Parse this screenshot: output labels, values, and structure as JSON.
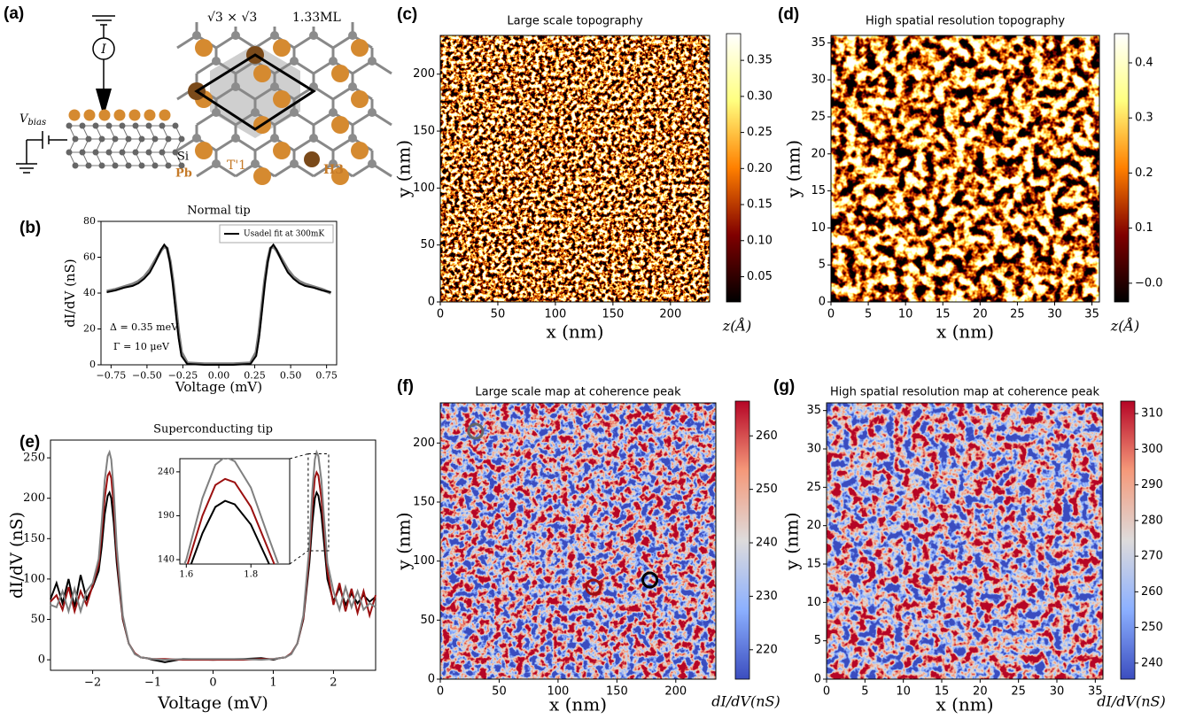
{
  "diagram": {
    "panel_label": "(a)",
    "current": "I",
    "bias_label": "V",
    "bias_subscript": "bias",
    "substrate": "Si",
    "adatom": "Pb",
    "superstructure": "√3 × √3",
    "coverage": "1.33ML",
    "site_1": "T'1",
    "site_2": "H3"
  },
  "chart_data": [
    {
      "type": "line",
      "panel_label": "(b)",
      "title": "Normal tip",
      "xlabel": "Voltage (mV)",
      "ylabel": "dI/dV (nS)",
      "x": [
        -0.78,
        -0.72,
        -0.66,
        -0.6,
        -0.56,
        -0.52,
        -0.48,
        -0.44,
        -0.4,
        -0.38,
        -0.36,
        -0.34,
        -0.32,
        -0.3,
        -0.28,
        -0.26,
        -0.22,
        -0.1,
        0,
        0.1,
        0.22,
        0.26,
        0.28,
        0.3,
        0.32,
        0.34,
        0.36,
        0.38,
        0.4,
        0.44,
        0.48,
        0.52,
        0.56,
        0.6,
        0.66,
        0.72,
        0.78
      ],
      "series": [
        {
          "color": "#808080",
          "values": [
            41,
            42,
            43.5,
            45,
            46.5,
            49,
            53,
            58.5,
            64,
            66,
            65,
            58,
            47,
            33,
            18,
            7,
            1,
            0.5,
            0.5,
            0.5,
            1,
            7,
            18,
            33,
            47,
            58,
            65,
            66,
            64,
            58.5,
            53,
            49,
            46.5,
            45,
            43.5,
            42,
            40
          ]
        },
        {
          "name": "Usadel fit at 300mK",
          "color": "#000000",
          "values": [
            40.5,
            41.5,
            43,
            44,
            45.5,
            48,
            51.5,
            57.5,
            64.5,
            67,
            65,
            57,
            45,
            30,
            15,
            5,
            0.5,
            0,
            0,
            0,
            0.5,
            5,
            15,
            30,
            45,
            57,
            65,
            67,
            64.5,
            57.5,
            51.5,
            48,
            45.5,
            44,
            43,
            41.5,
            40.5
          ]
        }
      ],
      "xlim": [
        -0.82,
        0.82
      ],
      "ylim": [
        0,
        80
      ],
      "xticks": [
        {
          "value": -0.75,
          "label": "−0.75"
        },
        {
          "value": -0.5,
          "label": "−0.50"
        },
        {
          "value": -0.25,
          "label": "−0.25"
        },
        {
          "value": 0,
          "label": "0.00"
        },
        0.25,
        {
          "value": 0.5,
          "label": "0.50"
        },
        0.75
      ],
      "yticks": [
        0,
        20,
        40,
        60,
        80
      ],
      "legend": "upper right",
      "annotations": [
        "Δ = 0.35 meV",
        "Γ = 10 μeV"
      ]
    },
    {
      "type": "heatmap",
      "panel_label": "(c)",
      "title": "Large scale topography",
      "xlabel": "x (nm)",
      "ylabel": "y (nm)",
      "colormap": "afmhot",
      "xlim": [
        0,
        234
      ],
      "ylim": [
        0,
        234
      ],
      "xticks": [
        0,
        50,
        100,
        150,
        200
      ],
      "yticks": [
        0,
        50,
        100,
        150,
        200
      ],
      "clim": [
        0.015,
        0.387
      ],
      "cticks": [
        0.05,
        {
          "value": 0.1,
          "label": "0.10"
        },
        0.15,
        {
          "value": 0.2,
          "label": "0.20"
        },
        0.25,
        {
          "value": 0.3,
          "label": "0.30"
        },
        0.35
      ],
      "colorbar_label": "z(Å)"
    },
    {
      "type": "heatmap",
      "panel_label": "(d)",
      "title": "High spatial resolution topography",
      "xlabel": "x (nm)",
      "ylabel": "y (nm)",
      "colormap": "afmhot",
      "xlim": [
        0,
        36
      ],
      "ylim": [
        0,
        36
      ],
      "xticks": [
        0,
        5,
        10,
        15,
        20,
        25,
        30,
        35
      ],
      "yticks": [
        0,
        5,
        10,
        15,
        20,
        25,
        30,
        35
      ],
      "clim": [
        -0.034,
        0.453
      ],
      "cticks": [
        {
          "value": 0,
          "label": "−0.0"
        },
        0.1,
        0.2,
        0.3,
        0.4
      ],
      "colorbar_label": "z(Å)"
    },
    {
      "type": "line",
      "panel_label": "(e)",
      "title": "Superconducting tip",
      "xlabel": "Voltage (mV)",
      "ylabel": "dI/dV (nS)",
      "x": [
        -2.7,
        -2.6,
        -2.5,
        -2.4,
        -2.3,
        -2.2,
        -2.1,
        -2.0,
        -1.9,
        -1.85,
        -1.8,
        -1.75,
        -1.72,
        -1.69,
        -1.65,
        -1.6,
        -1.5,
        -1.4,
        -1.3,
        -1.2,
        -1.1,
        -1.0,
        -0.8,
        -0.5,
        0,
        0.5,
        0.8,
        1.0,
        1.1,
        1.2,
        1.3,
        1.4,
        1.5,
        1.6,
        1.65,
        1.69,
        1.72,
        1.75,
        1.8,
        1.85,
        1.9,
        2.0,
        2.1,
        2.2,
        2.3,
        2.4,
        2.5,
        2.6,
        2.7
      ],
      "series": [
        {
          "color": "#000000",
          "values": [
            75,
            95,
            70,
            100,
            65,
            105,
            75,
            90,
            110,
            140,
            180,
            203,
            207,
            200,
            170,
            120,
            50,
            20,
            8,
            3,
            2,
            0,
            -3,
            1,
            0,
            1,
            2,
            0,
            2,
            3,
            8,
            20,
            50,
            120,
            170,
            200,
            207,
            203,
            180,
            140,
            100,
            72,
            90,
            68,
            82,
            70,
            80,
            72,
            78
          ]
        },
        {
          "color": "#9b1010",
          "values": [
            72,
            80,
            62,
            90,
            60,
            85,
            68,
            92,
            118,
            155,
            200,
            228,
            232,
            225,
            190,
            130,
            52,
            20,
            8,
            3,
            2,
            1,
            1,
            0,
            0,
            0,
            1,
            1,
            2,
            3,
            8,
            20,
            52,
            130,
            190,
            225,
            232,
            228,
            200,
            155,
            110,
            68,
            95,
            60,
            88,
            58,
            85,
            55,
            80
          ]
        },
        {
          "color": "#808080",
          "values": [
            68,
            65,
            85,
            60,
            88,
            60,
            85,
            95,
            125,
            170,
            222,
            252,
            257,
            248,
            210,
            140,
            55,
            20,
            7,
            3,
            2,
            1,
            0,
            1,
            1,
            1,
            0,
            1,
            2,
            3,
            7,
            20,
            55,
            140,
            210,
            248,
            257,
            252,
            222,
            170,
            120,
            85,
            62,
            90,
            65,
            85,
            62,
            70,
            65
          ]
        }
      ],
      "xlim": [
        -2.7,
        2.7
      ],
      "ylim": [
        -13,
        272
      ],
      "xticks": [
        {
          "value": -2,
          "label": "−2"
        },
        {
          "value": -1,
          "label": "−1"
        },
        0,
        1,
        2
      ],
      "yticks": [
        0,
        50,
        100,
        150,
        200,
        250
      ],
      "inset": {
        "xlim": [
          1.58,
          1.92
        ],
        "ylim": [
          135,
          255
        ],
        "xticks": [
          1.6,
          1.8
        ],
        "yticks": [
          140,
          190,
          240
        ]
      }
    },
    {
      "type": "heatmap",
      "panel_label": "(f)",
      "title": "Large scale map at coherence peak",
      "xlabel": "x (nm)",
      "ylabel": "y (nm)",
      "colormap": "coolwarm",
      "xlim": [
        0,
        234
      ],
      "ylim": [
        0,
        234
      ],
      "xticks": [
        0,
        50,
        100,
        150,
        200
      ],
      "yticks": [
        0,
        50,
        100,
        150,
        200
      ],
      "clim": [
        214.5,
        266.5
      ],
      "cticks": [
        220,
        230,
        240,
        250,
        260
      ],
      "colorbar_label": "dI/dV(nS)",
      "markers": [
        {
          "x": 30,
          "y": 210,
          "color": "#666666"
        },
        {
          "x": 130,
          "y": 78,
          "color": "#9b1010"
        },
        {
          "x": 178,
          "y": 84,
          "color": "#000000"
        }
      ]
    },
    {
      "type": "heatmap",
      "panel_label": "(g)",
      "title": "High spatial resolution map at coherence peak",
      "xlabel": "x (nm)",
      "ylabel": "y (nm)",
      "colormap": "coolwarm",
      "xlim": [
        0,
        36
      ],
      "ylim": [
        0,
        36
      ],
      "xticks": [
        0,
        5,
        10,
        15,
        20,
        25,
        30,
        35
      ],
      "yticks": [
        0,
        5,
        10,
        15,
        20,
        25,
        30,
        35
      ],
      "clim": [
        235.5,
        313.5
      ],
      "cticks": [
        240,
        250,
        260,
        270,
        280,
        290,
        300,
        310
      ],
      "colorbar_label": "dI/dV(nS)"
    }
  ]
}
